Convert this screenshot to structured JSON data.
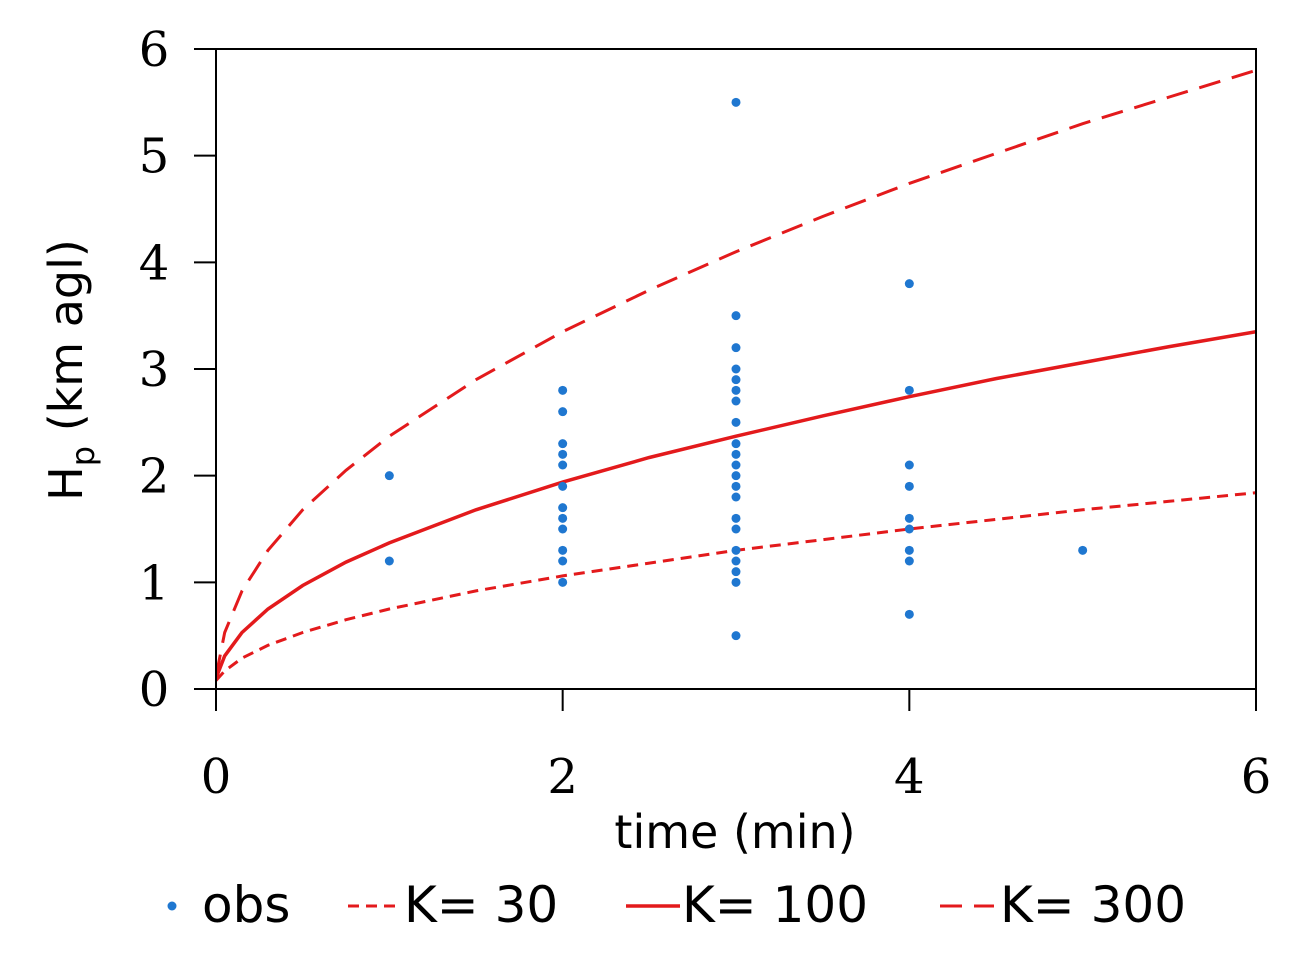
{
  "chart_data": {
    "type": "scatter",
    "xlabel": "time (min)",
    "ylabel_main": "H",
    "ylabel_sub": "p",
    "ylabel_rest": " (km agl)",
    "xlim": [
      0,
      6
    ],
    "ylim": [
      0,
      6
    ],
    "xticks": [
      "0",
      "2",
      "4",
      "6"
    ],
    "yticks": [
      "0",
      "1",
      "2",
      "3",
      "4",
      "5",
      "6"
    ],
    "series": [
      {
        "name": "obs",
        "kind": "points",
        "color": "#1f77d0",
        "points": [
          [
            1,
            2.0
          ],
          [
            1,
            1.2
          ],
          [
            2,
            2.8
          ],
          [
            2,
            2.6
          ],
          [
            2,
            2.3
          ],
          [
            2,
            2.2
          ],
          [
            2,
            2.1
          ],
          [
            2,
            1.9
          ],
          [
            2,
            1.7
          ],
          [
            2,
            1.6
          ],
          [
            2,
            1.5
          ],
          [
            2,
            1.3
          ],
          [
            2,
            1.2
          ],
          [
            2,
            1.0
          ],
          [
            3,
            5.5
          ],
          [
            3,
            3.5
          ],
          [
            3,
            3.2
          ],
          [
            3,
            3.0
          ],
          [
            3,
            2.9
          ],
          [
            3,
            2.8
          ],
          [
            3,
            2.7
          ],
          [
            3,
            2.5
          ],
          [
            3,
            2.3
          ],
          [
            3,
            2.2
          ],
          [
            3,
            2.1
          ],
          [
            3,
            2.0
          ],
          [
            3,
            1.9
          ],
          [
            3,
            1.8
          ],
          [
            3,
            1.6
          ],
          [
            3,
            1.5
          ],
          [
            3,
            1.3
          ],
          [
            3,
            1.2
          ],
          [
            3,
            1.1
          ],
          [
            3,
            1.0
          ],
          [
            3,
            0.5
          ],
          [
            4,
            3.8
          ],
          [
            4,
            2.8
          ],
          [
            4,
            2.1
          ],
          [
            4,
            1.9
          ],
          [
            4,
            1.6
          ],
          [
            4,
            1.5
          ],
          [
            4,
            1.3
          ],
          [
            4,
            1.2
          ],
          [
            4,
            0.7
          ],
          [
            5,
            1.3
          ]
        ]
      },
      {
        "name": "K= 30",
        "kind": "line",
        "style": "dashed-short",
        "color": "#e31a1c",
        "x": [
          0,
          0.05,
          0.15,
          0.3,
          0.5,
          0.75,
          1,
          1.5,
          2,
          2.5,
          3,
          3.5,
          4,
          4.5,
          5,
          5.5,
          6
        ],
        "y": [
          0.08,
          0.17,
          0.29,
          0.41,
          0.53,
          0.65,
          0.75,
          0.92,
          1.06,
          1.18,
          1.3,
          1.4,
          1.5,
          1.59,
          1.68,
          1.76,
          1.84
        ]
      },
      {
        "name": "K= 100",
        "kind": "line",
        "style": "solid",
        "color": "#e31a1c",
        "x": [
          0,
          0.05,
          0.15,
          0.3,
          0.5,
          0.75,
          1,
          1.5,
          2,
          2.5,
          3,
          3.5,
          4,
          4.5,
          5,
          5.5,
          6
        ],
        "y": [
          0.1,
          0.31,
          0.53,
          0.75,
          0.97,
          1.19,
          1.37,
          1.68,
          1.94,
          2.17,
          2.37,
          2.56,
          2.74,
          2.91,
          3.06,
          3.21,
          3.35
        ]
      },
      {
        "name": "K= 300",
        "kind": "line",
        "style": "dashed-long",
        "color": "#e31a1c",
        "x": [
          0,
          0.05,
          0.15,
          0.3,
          0.5,
          0.75,
          1,
          1.5,
          2,
          2.5,
          3,
          3.5,
          4,
          4.5,
          5,
          5.5,
          6
        ],
        "y": [
          0.12,
          0.53,
          0.92,
          1.3,
          1.68,
          2.05,
          2.37,
          2.9,
          3.35,
          3.74,
          4.1,
          4.43,
          4.74,
          5.02,
          5.3,
          5.55,
          5.8
        ]
      }
    ],
    "legend": {
      "position": "bottom",
      "items": [
        {
          "label": "obs",
          "kind": "point"
        },
        {
          "label": "K= 30",
          "kind": "dashed-short"
        },
        {
          "label": "K= 100",
          "kind": "solid"
        },
        {
          "label": "K= 300",
          "kind": "dashed-long"
        }
      ]
    }
  }
}
